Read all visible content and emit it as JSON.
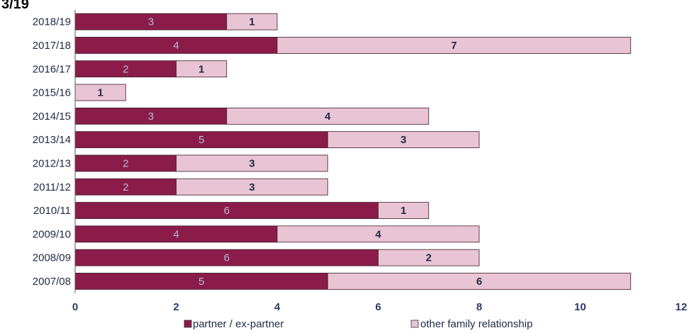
{
  "chart_data": {
    "type": "bar",
    "orientation": "horizontal",
    "stacked": true,
    "title_fragment": "3/19",
    "categories": [
      "2018/19",
      "2017/18",
      "2016/17",
      "2015/16",
      "2014/15",
      "2013/14",
      "2012/13",
      "2011/12",
      "2010/11",
      "2009/10",
      "2008/09",
      "2007/08"
    ],
    "series": [
      {
        "name": "partner / ex-partner",
        "color": "#8b1c4a",
        "values": [
          3,
          4,
          2,
          0,
          3,
          5,
          2,
          2,
          6,
          4,
          6,
          5
        ]
      },
      {
        "name": "other family relationship",
        "color": "#e8c4d4",
        "values": [
          1,
          7,
          1,
          1,
          4,
          3,
          3,
          3,
          1,
          4,
          2,
          6
        ]
      }
    ],
    "xlim": [
      0,
      12
    ],
    "xticks": [
      0,
      2,
      4,
      6,
      8,
      10,
      12
    ],
    "legend_position": "bottom"
  }
}
